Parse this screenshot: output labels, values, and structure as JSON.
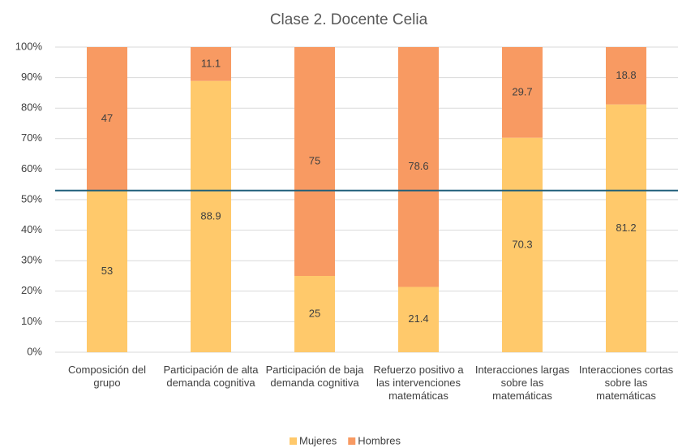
{
  "chart_data": {
    "type": "stacked_bar_100",
    "title": "Clase 2. Docente Celia",
    "categories": [
      "Composición del grupo",
      "Participación de alta demanda cognitiva",
      "Participación de baja demanda cognitiva",
      "Refuerzo positivo a las intervenciones matemáticas",
      "Interacciones largas sobre las matemáticas",
      "Interacciones cortas sobre las matemáticas"
    ],
    "series": [
      {
        "name": "Mujeres",
        "color": "#ffc96b",
        "values": [
          53,
          88.9,
          25,
          21.4,
          70.3,
          81.2
        ]
      },
      {
        "name": "Hombres",
        "color": "#f89a62",
        "values": [
          47,
          11.1,
          75,
          78.6,
          29.7,
          18.8
        ]
      }
    ],
    "ylim": [
      0,
      100
    ],
    "yticks": [
      {
        "value": 0,
        "label": "0%"
      },
      {
        "value": 10,
        "label": "10%"
      },
      {
        "value": 20,
        "label": "20%"
      },
      {
        "value": 30,
        "label": "30%"
      },
      {
        "value": 40,
        "label": "40%"
      },
      {
        "value": 50,
        "label": "50%"
      },
      {
        "value": 60,
        "label": "60%"
      },
      {
        "value": 70,
        "label": "70%"
      },
      {
        "value": 80,
        "label": "80%"
      },
      {
        "value": 90,
        "label": "90%"
      },
      {
        "value": 100,
        "label": "100%"
      }
    ],
    "grid": true,
    "reference_line": {
      "value": 53,
      "color": "#1f5f7a"
    },
    "legend": "bottom"
  }
}
